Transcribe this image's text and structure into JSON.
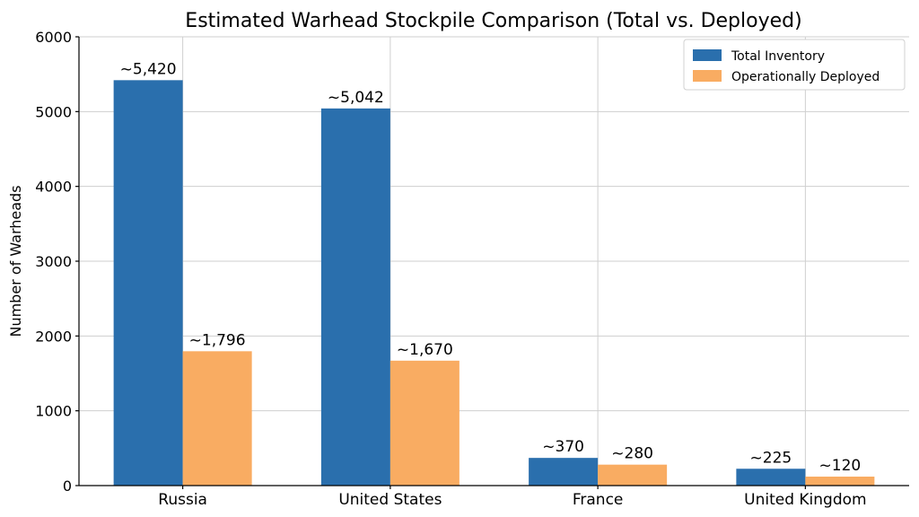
{
  "chart_data": {
    "type": "bar",
    "title": "Estimated Warhead Stockpile Comparison (Total vs. Deployed)",
    "xlabel": "",
    "ylabel": "Number of Warheads",
    "ylim": [
      0,
      6000
    ],
    "yticks": [
      0,
      1000,
      2000,
      3000,
      4000,
      5000,
      6000
    ],
    "categories": [
      "Russia",
      "United States",
      "France",
      "United Kingdom"
    ],
    "series": [
      {
        "name": "Total Inventory",
        "color": "#2a6fad",
        "values": [
          5420,
          5042,
          370,
          225
        ],
        "labels": [
          "~5,420",
          "~5,042",
          "~370",
          "~225"
        ]
      },
      {
        "name": "Operationally Deployed",
        "color": "#f9ac62",
        "values": [
          1796,
          1670,
          280,
          120
        ],
        "labels": [
          "~1,796",
          "~1,670",
          "~280",
          "~120"
        ]
      }
    ],
    "grid": true,
    "legend_position": "top-right"
  }
}
